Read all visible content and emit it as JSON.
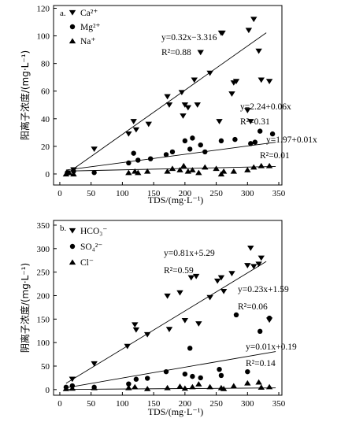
{
  "chart_data": [
    {
      "panel": "a.",
      "type": "scatter",
      "xlabel": "TDS/(mg·L⁻¹)",
      "ylabel": "阳离子浓度/(mg·L⁻¹)",
      "xlim": [
        -10,
        355
      ],
      "ylim": [
        -8,
        122
      ],
      "xticks": [
        0,
        50,
        100,
        150,
        200,
        250,
        300,
        350
      ],
      "yticks": [
        0,
        20,
        40,
        60,
        80,
        100,
        120
      ],
      "legend": [
        "Ca²⁺",
        "Mg²⁺",
        "Na⁺"
      ],
      "series": [
        {
          "name": "Ca²⁺",
          "marker": "triangle-down",
          "x": [
            22,
            55,
            110,
            118,
            122,
            142,
            172,
            175,
            195,
            197,
            200,
            205,
            215,
            220,
            225,
            240,
            255,
            258,
            260,
            275,
            278,
            282,
            300,
            302,
            305,
            310,
            318,
            322,
            335
          ],
          "y": [
            3,
            18,
            29,
            38,
            32,
            36,
            56,
            50,
            59,
            42,
            50,
            48,
            68,
            50,
            88,
            73,
            38,
            102,
            102,
            58,
            66,
            67,
            46,
            104,
            38,
            112,
            89,
            68,
            67
          ],
          "fit": {
            "slope": 0.32,
            "intercept": -3.316,
            "x_range": [
              10,
              330
            ]
          }
        },
        {
          "name": "Mg²⁺",
          "marker": "circle",
          "x": [
            12,
            22,
            55,
            110,
            118,
            125,
            145,
            170,
            180,
            200,
            208,
            212,
            225,
            232,
            258,
            280,
            305,
            312,
            320,
            340
          ],
          "y": [
            1,
            2,
            1,
            8,
            15,
            10,
            11,
            14,
            16,
            24,
            18,
            26,
            21,
            16,
            24,
            25,
            22,
            23,
            31,
            29
          ],
          "fit": {
            "slope": 0.06,
            "intercept": 2.24,
            "x_range": [
              10,
              345
            ]
          }
        },
        {
          "name": "Na⁺",
          "marker": "triangle-up",
          "x": [
            10,
            15,
            22,
            110,
            120,
            125,
            140,
            172,
            180,
            192,
            198,
            205,
            212,
            222,
            232,
            250,
            258,
            262,
            278,
            300,
            310,
            322,
            335
          ],
          "y": [
            0,
            1,
            0,
            1,
            2,
            1,
            2,
            2,
            4,
            3,
            6,
            2,
            3,
            1,
            5,
            4,
            0,
            2,
            2,
            3,
            5,
            6,
            6
          ],
          "fit": {
            "slope": 0.01,
            "intercept": 1.97,
            "x_range": [
              10,
              345
            ]
          }
        }
      ],
      "annotations": [
        {
          "key": "Ca",
          "eq": "y=0.32x−3.316",
          "r2": "R²=0.88"
        },
        {
          "key": "Mg",
          "eq": "y=2.24+0.06x",
          "r2": "R²=0.31"
        },
        {
          "key": "Na",
          "eq": "y=1.97+0.01x",
          "r2": "R²=0.01"
        }
      ]
    },
    {
      "panel": "b.",
      "type": "scatter",
      "xlabel": "TDS/(mg·L⁻¹)",
      "ylabel": "阴离子浓度/(mg·L⁻¹)",
      "xlim": [
        -10,
        355
      ],
      "ylim": [
        -12,
        360
      ],
      "xticks": [
        0,
        50,
        100,
        150,
        200,
        250,
        300,
        350
      ],
      "yticks": [
        0,
        50,
        100,
        150,
        200,
        250,
        300,
        350
      ],
      "legend": [
        "HCO₃⁻",
        "SO₄²⁻",
        "Cl⁻"
      ],
      "series": [
        {
          "name": "HCO₃⁻",
          "marker": "triangle-down",
          "x": [
            20,
            55,
            108,
            120,
            122,
            140,
            172,
            175,
            192,
            200,
            210,
            218,
            222,
            240,
            252,
            258,
            262,
            275,
            300,
            305,
            310,
            318,
            322,
            335
          ],
          "y": [
            22,
            55,
            92,
            138,
            127,
            117,
            199,
            128,
            206,
            147,
            238,
            241,
            140,
            196,
            231,
            238,
            209,
            247,
            264,
            301,
            262,
            267,
            280,
            148
          ],
          "fit": {
            "slope": 0.81,
            "intercept": 5.29,
            "x_range": [
              10,
              330
            ]
          }
        },
        {
          "name": "SO₄²⁻",
          "marker": "circle",
          "x": [
            10,
            20,
            55,
            110,
            122,
            140,
            170,
            200,
            208,
            212,
            225,
            255,
            258,
            282,
            300,
            320,
            335
          ],
          "y": [
            5,
            8,
            5,
            12,
            22,
            24,
            38,
            33,
            88,
            28,
            25,
            43,
            30,
            159,
            38,
            124,
            152
          ],
          "fit": {
            "slope": 0.23,
            "intercept": 1.59,
            "x_range": [
              10,
              345
            ]
          }
        },
        {
          "name": "Cl⁻",
          "marker": "triangle-up",
          "x": [
            10,
            20,
            55,
            110,
            120,
            140,
            172,
            192,
            200,
            212,
            222,
            240,
            258,
            262,
            278,
            300,
            318,
            322,
            335
          ],
          "y": [
            2,
            3,
            4,
            4,
            6,
            2,
            4,
            7,
            3,
            6,
            12,
            6,
            4,
            2,
            8,
            14,
            16,
            5,
            6
          ],
          "fit": {
            "slope": 0.01,
            "intercept": 0.19,
            "x_range": [
              10,
              345
            ]
          }
        }
      ],
      "annotations": [
        {
          "key": "HCO3",
          "eq": "y=0.81x+5.29",
          "r2": "R²=0.59"
        },
        {
          "key": "SO4",
          "eq": "y=0.23x+1.59",
          "r2": "R²=0.06"
        },
        {
          "key": "Cl",
          "eq": "y=0.01x+0.19",
          "r2": "R²=0.14"
        }
      ]
    }
  ]
}
